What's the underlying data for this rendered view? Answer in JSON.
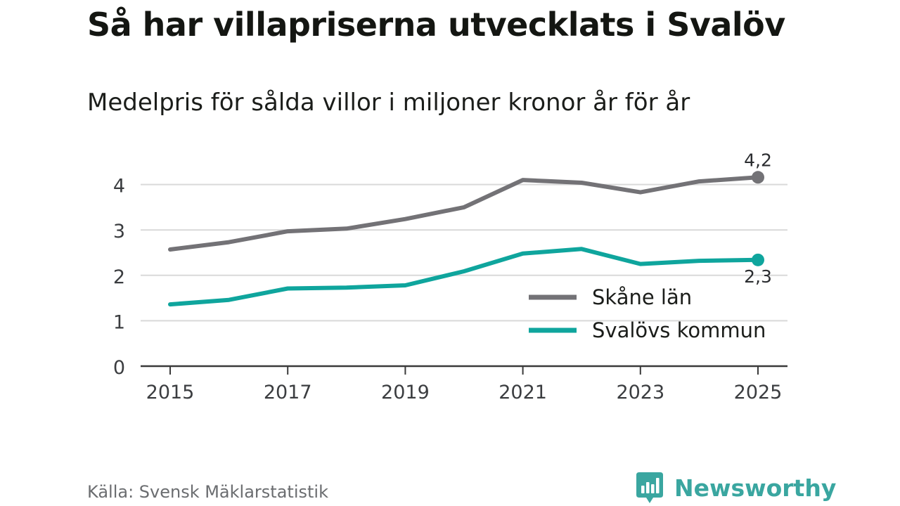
{
  "header": {
    "title": "Så har villapriserna utvecklats i Svalöv",
    "subtitle": "Medelpris för sålda villor i miljoner kronor år för år"
  },
  "footer": {
    "source": "Källa: Svensk Mäklarstatistik",
    "brand": "Newsworthy"
  },
  "colors": {
    "skane": "#737276",
    "svalov": "#0fa59d",
    "grid": "#d9d9d9",
    "axis": "#3a3a3a",
    "brand": "#3aa6a0"
  },
  "chart_data": {
    "type": "line",
    "title": "Så har villapriserna utvecklats i Svalöv",
    "subtitle": "Medelpris för sålda villor i miljoner kronor år för år",
    "xlabel": "",
    "ylabel": "",
    "x": [
      2015,
      2016,
      2017,
      2018,
      2019,
      2020,
      2021,
      2022,
      2023,
      2024,
      2025
    ],
    "xticks": [
      "2015",
      "2017",
      "2019",
      "2021",
      "2023",
      "2025"
    ],
    "yticks": [
      "0",
      "1",
      "2",
      "3",
      "4"
    ],
    "ylim": [
      0,
      4.5
    ],
    "xlim": [
      2015,
      2025
    ],
    "grid": true,
    "legend_position": "bottom-right",
    "series": [
      {
        "name": "Skåne län",
        "values": [
          2.57,
          2.73,
          2.97,
          3.03,
          3.24,
          3.5,
          4.1,
          4.04,
          3.83,
          4.07,
          4.16
        ],
        "end_label": "4,2"
      },
      {
        "name": "Svalövs kommun",
        "values": [
          1.36,
          1.46,
          1.71,
          1.73,
          1.78,
          2.09,
          2.48,
          2.58,
          2.25,
          2.32,
          2.34
        ],
        "end_label": "2,3"
      }
    ]
  }
}
